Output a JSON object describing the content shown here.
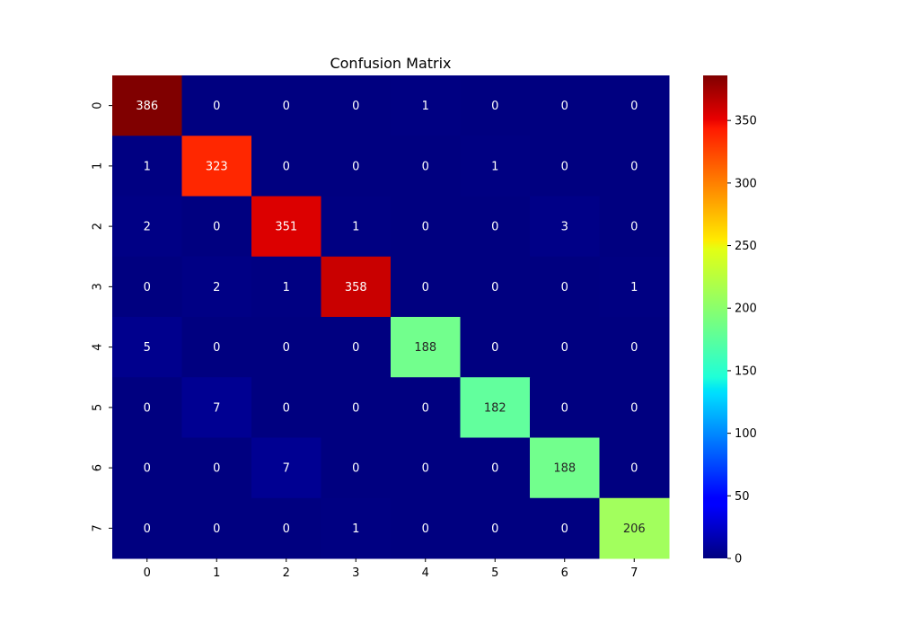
{
  "chart_data": {
    "type": "heatmap",
    "title": "Confusion Matrix",
    "xlabel": "",
    "ylabel": "",
    "x_categories": [
      "0",
      "1",
      "2",
      "3",
      "4",
      "5",
      "6",
      "7"
    ],
    "y_categories": [
      "0",
      "1",
      "2",
      "3",
      "4",
      "5",
      "6",
      "7"
    ],
    "matrix": [
      [
        386,
        0,
        0,
        0,
        1,
        0,
        0,
        0
      ],
      [
        1,
        323,
        0,
        0,
        0,
        1,
        0,
        0
      ],
      [
        2,
        0,
        351,
        1,
        0,
        0,
        3,
        0
      ],
      [
        0,
        2,
        1,
        358,
        0,
        0,
        0,
        1
      ],
      [
        5,
        0,
        0,
        0,
        188,
        0,
        0,
        0
      ],
      [
        0,
        7,
        0,
        0,
        0,
        182,
        0,
        0
      ],
      [
        0,
        0,
        7,
        0,
        0,
        0,
        188,
        0
      ],
      [
        0,
        0,
        0,
        1,
        0,
        0,
        0,
        206
      ]
    ],
    "colormap": "jet",
    "vmin": 0,
    "vmax": 386,
    "colorbar": {
      "ticks": [
        0,
        50,
        100,
        150,
        200,
        250,
        300,
        350
      ],
      "tick_labels": [
        "0",
        "50",
        "100",
        "150",
        "200",
        "250",
        "300",
        "350"
      ]
    },
    "grid": false,
    "annotations": true
  }
}
